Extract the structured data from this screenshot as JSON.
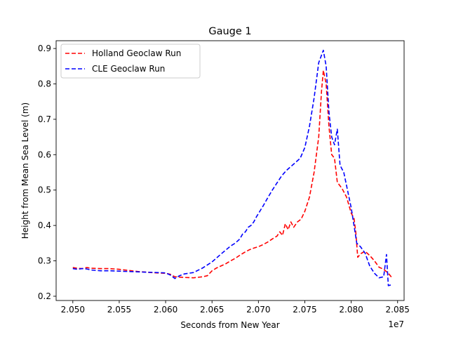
{
  "chart_data": {
    "type": "line",
    "title": "Gauge 1",
    "xlabel": "Seconds from New Year",
    "ylabel": "Height from Mean Sea Level (m)",
    "x_offset_text": "1e7",
    "xlim": [
      2.0482,
      2.0857
    ],
    "ylim": [
      0.188,
      0.922
    ],
    "x_ticks": [
      2.05,
      2.055,
      2.06,
      2.065,
      2.07,
      2.075,
      2.08,
      2.085
    ],
    "x_tick_labels": [
      "2.050",
      "2.055",
      "2.060",
      "2.065",
      "2.070",
      "2.075",
      "2.080",
      "2.085"
    ],
    "y_ticks": [
      0.2,
      0.3,
      0.4,
      0.5,
      0.6,
      0.7,
      0.8,
      0.9
    ],
    "y_tick_labels": [
      "0.2",
      "0.3",
      "0.4",
      "0.5",
      "0.6",
      "0.7",
      "0.8",
      "0.9"
    ],
    "grid": false,
    "legend_position": "top-left",
    "series": [
      {
        "name": "Holland Geoclaw Run",
        "color": "#ff0000",
        "line_style": "dashed",
        "points": [
          [
            2.05,
            0.281
          ],
          [
            2.0505,
            0.279
          ],
          [
            2.051,
            0.278
          ],
          [
            2.0515,
            0.281
          ],
          [
            2.052,
            0.279
          ],
          [
            2.053,
            0.278
          ],
          [
            2.054,
            0.278
          ],
          [
            2.055,
            0.276
          ],
          [
            2.056,
            0.273
          ],
          [
            2.057,
            0.27
          ],
          [
            2.058,
            0.268
          ],
          [
            2.059,
            0.266
          ],
          [
            2.06,
            0.265
          ],
          [
            2.0605,
            0.262
          ],
          [
            2.061,
            0.255
          ],
          [
            2.0615,
            0.254
          ],
          [
            2.062,
            0.253
          ],
          [
            2.063,
            0.252
          ],
          [
            2.064,
            0.255
          ],
          [
            2.0645,
            0.258
          ],
          [
            2.065,
            0.272
          ],
          [
            2.0655,
            0.28
          ],
          [
            2.066,
            0.286
          ],
          [
            2.0665,
            0.292
          ],
          [
            2.067,
            0.3
          ],
          [
            2.0675,
            0.307
          ],
          [
            2.068,
            0.316
          ],
          [
            2.0685,
            0.324
          ],
          [
            2.069,
            0.331
          ],
          [
            2.0695,
            0.336
          ],
          [
            2.07,
            0.34
          ],
          [
            2.0705,
            0.346
          ],
          [
            2.071,
            0.353
          ],
          [
            2.0715,
            0.362
          ],
          [
            2.072,
            0.37
          ],
          [
            2.0723,
            0.382
          ],
          [
            2.0726,
            0.372
          ],
          [
            2.0729,
            0.405
          ],
          [
            2.0732,
            0.388
          ],
          [
            2.0735,
            0.41
          ],
          [
            2.0738,
            0.395
          ],
          [
            2.0742,
            0.41
          ],
          [
            2.0746,
            0.418
          ],
          [
            2.075,
            0.44
          ],
          [
            2.0755,
            0.48
          ],
          [
            2.076,
            0.55
          ],
          [
            2.0765,
            0.65
          ],
          [
            2.0768,
            0.78
          ],
          [
            2.077,
            0.838
          ],
          [
            2.0773,
            0.8
          ],
          [
            2.0776,
            0.68
          ],
          [
            2.0779,
            0.6
          ],
          [
            2.0782,
            0.59
          ],
          [
            2.0785,
            0.522
          ],
          [
            2.079,
            0.505
          ],
          [
            2.0795,
            0.48
          ],
          [
            2.08,
            0.435
          ],
          [
            2.0803,
            0.42
          ],
          [
            2.0805,
            0.38
          ],
          [
            2.0807,
            0.31
          ],
          [
            2.081,
            0.32
          ],
          [
            2.0815,
            0.327
          ],
          [
            2.082,
            0.315
          ],
          [
            2.0825,
            0.3
          ],
          [
            2.083,
            0.282
          ],
          [
            2.0835,
            0.276
          ],
          [
            2.084,
            0.265
          ],
          [
            2.0844,
            0.252
          ]
        ]
      },
      {
        "name": "CLE Geoclaw Run",
        "color": "#0000ff",
        "line_style": "dashed",
        "points": [
          [
            2.05,
            0.278
          ],
          [
            2.0505,
            0.276
          ],
          [
            2.051,
            0.278
          ],
          [
            2.0515,
            0.277
          ],
          [
            2.052,
            0.274
          ],
          [
            2.053,
            0.272
          ],
          [
            2.054,
            0.272
          ],
          [
            2.055,
            0.271
          ],
          [
            2.056,
            0.27
          ],
          [
            2.057,
            0.269
          ],
          [
            2.058,
            0.268
          ],
          [
            2.059,
            0.267
          ],
          [
            2.06,
            0.266
          ],
          [
            2.0605,
            0.26
          ],
          [
            2.061,
            0.25
          ],
          [
            2.0615,
            0.258
          ],
          [
            2.062,
            0.263
          ],
          [
            2.063,
            0.267
          ],
          [
            2.064,
            0.28
          ],
          [
            2.065,
            0.297
          ],
          [
            2.066,
            0.32
          ],
          [
            2.067,
            0.342
          ],
          [
            2.0675,
            0.35
          ],
          [
            2.068,
            0.362
          ],
          [
            2.0683,
            0.376
          ],
          [
            2.0686,
            0.382
          ],
          [
            2.0689,
            0.395
          ],
          [
            2.0692,
            0.4
          ],
          [
            2.0695,
            0.41
          ],
          [
            2.0698,
            0.425
          ],
          [
            2.0701,
            0.438
          ],
          [
            2.0705,
            0.455
          ],
          [
            2.071,
            0.478
          ],
          [
            2.0715,
            0.5
          ],
          [
            2.072,
            0.52
          ],
          [
            2.0725,
            0.54
          ],
          [
            2.073,
            0.555
          ],
          [
            2.074,
            0.578
          ],
          [
            2.0745,
            0.59
          ],
          [
            2.075,
            0.62
          ],
          [
            2.0755,
            0.68
          ],
          [
            2.076,
            0.76
          ],
          [
            2.0765,
            0.86
          ],
          [
            2.077,
            0.895
          ],
          [
            2.0773,
            0.85
          ],
          [
            2.0776,
            0.72
          ],
          [
            2.0779,
            0.65
          ],
          [
            2.0782,
            0.628
          ],
          [
            2.0785,
            0.672
          ],
          [
            2.0788,
            0.57
          ],
          [
            2.0792,
            0.55
          ],
          [
            2.0796,
            0.5
          ],
          [
            2.08,
            0.45
          ],
          [
            2.0803,
            0.4
          ],
          [
            2.0806,
            0.35
          ],
          [
            2.081,
            0.34
          ],
          [
            2.0815,
            0.322
          ],
          [
            2.082,
            0.285
          ],
          [
            2.0825,
            0.265
          ],
          [
            2.083,
            0.252
          ],
          [
            2.0835,
            0.255
          ],
          [
            2.0838,
            0.318
          ],
          [
            2.084,
            0.23
          ],
          [
            2.0843,
            0.232
          ]
        ]
      }
    ]
  }
}
